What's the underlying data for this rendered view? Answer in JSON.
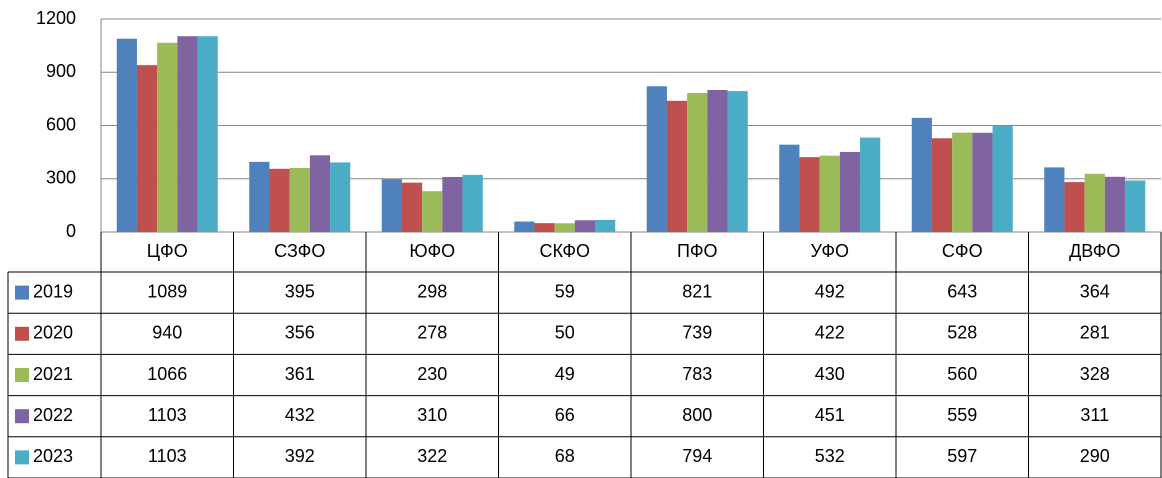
{
  "chart_data": {
    "type": "bar",
    "categories": [
      "ЦФО",
      "СЗФО",
      "ЮФО",
      "СКФО",
      "ПФО",
      "УФО",
      "СФО",
      "ДВФО"
    ],
    "series": [
      {
        "name": "2019",
        "color": "#4f81bd",
        "values": [
          1089,
          395,
          298,
          59,
          821,
          492,
          643,
          364
        ]
      },
      {
        "name": "2020",
        "color": "#c0504d",
        "values": [
          940,
          356,
          278,
          50,
          739,
          422,
          528,
          281
        ]
      },
      {
        "name": "2021",
        "color": "#9bbb59",
        "values": [
          1066,
          361,
          230,
          49,
          783,
          430,
          560,
          328
        ]
      },
      {
        "name": "2022",
        "color": "#8064a2",
        "values": [
          1103,
          432,
          310,
          66,
          800,
          451,
          559,
          311
        ]
      },
      {
        "name": "2023",
        "color": "#4bacc6",
        "values": [
          1103,
          392,
          322,
          68,
          794,
          532,
          597,
          290
        ]
      }
    ],
    "ylim": [
      0,
      1200
    ],
    "yticks": [
      0,
      300,
      600,
      900,
      1200
    ],
    "grid": true,
    "data_table": true
  }
}
